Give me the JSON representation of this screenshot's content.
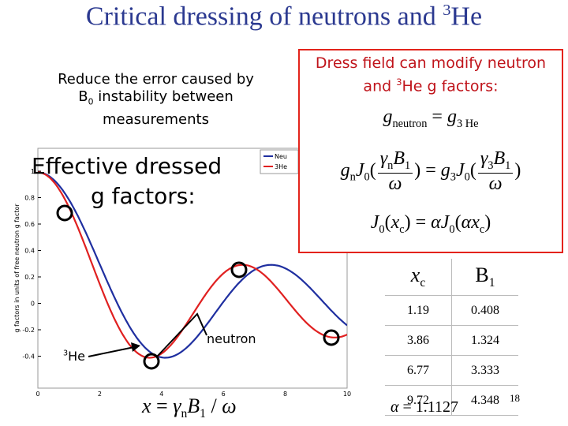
{
  "title": [
    "Critical dressing of neutrons and ",
    {
      "sup": "3"
    },
    "He"
  ],
  "note": [
    [
      "Reduce the error caused by"
    ],
    [
      "B",
      {
        "sub": "0"
      },
      " instability between"
    ],
    [
      "measurements"
    ]
  ],
  "box": {
    "lines": [
      [
        "Dress field can modify neutron"
      ],
      [
        "and ",
        {
          "sup": "3"
        },
        "He g factors:"
      ]
    ],
    "equations": [
      [
        {
          "i": "g"
        },
        {
          "sub": "neutron"
        },
        " = ",
        {
          "i": "g"
        },
        {
          "sub": "3 He"
        }
      ],
      [
        {
          "i": "g"
        },
        {
          "sub": "n"
        },
        {
          "i": "J"
        },
        {
          "sub": "0"
        },
        "(",
        {
          "frac": {
            "num": [
              {
                "i": "γ"
              },
              {
                "sub": "n"
              },
              {
                "i": "B"
              },
              {
                "sub": "1"
              }
            ],
            "den": [
              {
                "i": "ω"
              }
            ]
          }
        },
        ") = ",
        {
          "i": "g"
        },
        {
          "sub": "3"
        },
        {
          "i": "J"
        },
        {
          "sub": "0"
        },
        "(",
        {
          "frac": {
            "num": [
              {
                "i": "γ"
              },
              {
                "sub": "3"
              },
              {
                "i": "B"
              },
              {
                "sub": "1"
              }
            ],
            "den": [
              {
                "i": "ω"
              }
            ]
          }
        },
        ")"
      ],
      [
        {
          "i": "J"
        },
        {
          "sub": "0"
        },
        "(",
        {
          "i": "x"
        },
        {
          "sub": "c"
        },
        ") = ",
        {
          "i": "α"
        },
        {
          "i": "J"
        },
        {
          "sub": "0"
        },
        "(",
        {
          "i": "α"
        },
        {
          "i": "x"
        },
        {
          "sub": "c"
        },
        ")"
      ]
    ]
  },
  "table": {
    "header": [
      [
        {
          "i": "x"
        },
        {
          "sub": "c"
        }
      ],
      [
        "B",
        {
          "sub": "1"
        }
      ]
    ],
    "rows": [
      [
        "1.19",
        "0.408"
      ],
      [
        "3.86",
        "1.324"
      ],
      [
        "6.77",
        "3.333"
      ],
      [
        "9.72",
        "4.348"
      ]
    ]
  },
  "alpha": [
    {
      "i": "α"
    },
    " = 1.1127"
  ],
  "x_formula": [
    {
      "i": "x"
    },
    " = ",
    {
      "i": "γ"
    },
    {
      "sub": "n"
    },
    {
      "i": "B"
    },
    {
      "sub": "1"
    },
    " / ",
    {
      "i": "ω"
    }
  ],
  "plot": {
    "y_label": "g factors in units of free neutron g factor",
    "yticks": [
      "1",
      "0.8",
      "0.6",
      "0.4",
      "0.2",
      "0",
      "-0.2",
      "-0.4"
    ],
    "xticks": [
      "0",
      "2",
      "4",
      "6",
      "8",
      "10"
    ],
    "legend": [
      "Neu",
      "3He"
    ]
  },
  "overlay": {
    "heading": [
      [
        "Effective dressed"
      ],
      [
        "g factors:"
      ]
    ],
    "neutron": "neutron",
    "he3": [
      {
        "sup": "3"
      },
      "He"
    ]
  },
  "page_number": "18"
}
